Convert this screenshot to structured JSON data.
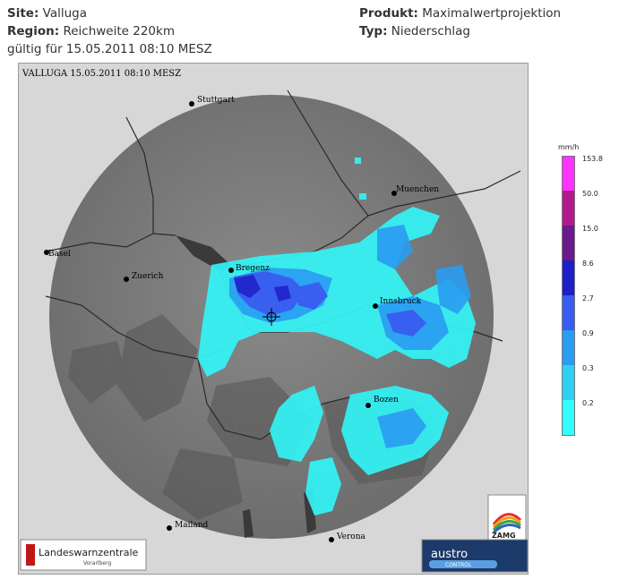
{
  "header": {
    "site_label": "Site:",
    "site_value": "Valluga",
    "region_label": "Region:",
    "region_value": "Reichweite 220km",
    "valid_text": "gültig für 15.05.2011 08:10 MESZ",
    "product_label": "Produkt:",
    "product_value": "Maximalwertprojektion",
    "type_label": "Typ:",
    "type_value": "Niederschlag"
  },
  "map": {
    "stamp": "VALLUGA  15.05.2011 08:10 MESZ",
    "cities": [
      "Stuttgart",
      "Muenchen",
      "Basel",
      "Bregenz",
      "Zuerich",
      "Innsbruck",
      "Bozen",
      "Mailand",
      "Verona"
    ]
  },
  "legend": {
    "unit": "mm/h",
    "levels": [
      {
        "label": "153.8",
        "color": "#ff33ff"
      },
      {
        "label": "50.0",
        "color": "#b3198c"
      },
      {
        "label": "15.0",
        "color": "#6b1a8c"
      },
      {
        "label": "8.6",
        "color": "#1f1fc8"
      },
      {
        "label": "2.7",
        "color": "#3a5cf0"
      },
      {
        "label": "0.9",
        "color": "#2a9cf2"
      },
      {
        "label": "0.3",
        "color": "#2ecff5"
      },
      {
        "label": "0.2",
        "color": "#33ffff"
      }
    ]
  },
  "logos": {
    "lwz_title": "Landeswarnzentrale",
    "lwz_sub": "Vorarlberg",
    "zamg": "ZAMG",
    "austro": "austro",
    "control": "CONTROL"
  }
}
